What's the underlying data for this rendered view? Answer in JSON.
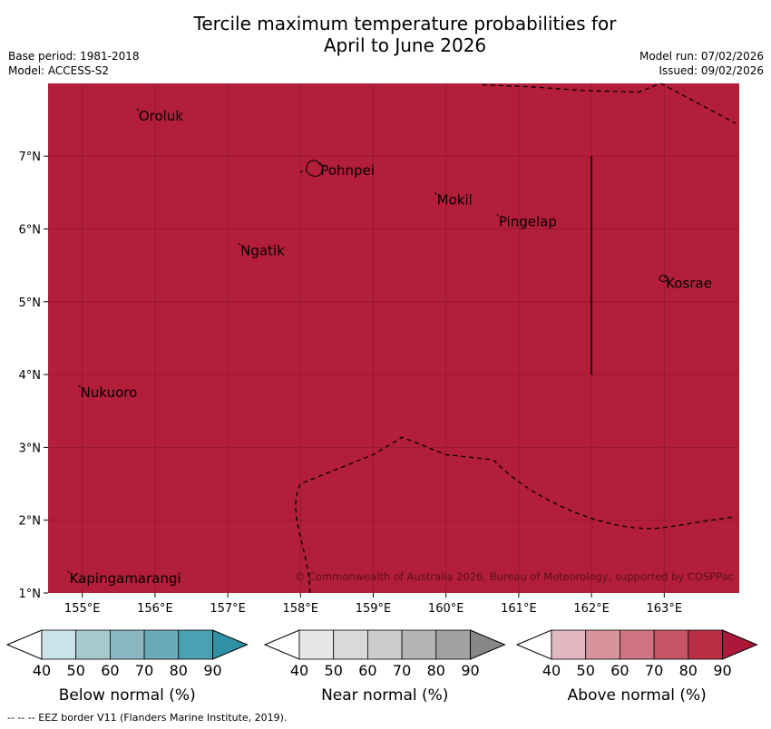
{
  "title_line1": "Tercile maximum temperature probabilities for",
  "title_line2": "April to June 2026",
  "base_period": "Base period: 1981-2018",
  "model": "Model: ACCESS-S2",
  "model_run": "Model run: 07/02/2026",
  "issued": "Issued: 09/02/2026",
  "map": {
    "fill_color": "#b31e3a",
    "lon_labels": [
      "155°E",
      "156°E",
      "157°E",
      "158°E",
      "159°E",
      "160°E",
      "161°E",
      "162°E",
      "163°E"
    ],
    "lat_labels": [
      "7°N",
      "6°N",
      "5°N",
      "4°N",
      "3°N",
      "2°N",
      "1°N"
    ],
    "places": [
      {
        "name": "Oroluk",
        "lon": 155.75,
        "lat": 7.6
      },
      {
        "name": "Pohnpei",
        "lon": 158.25,
        "lat": 6.85
      },
      {
        "name": "Mokil",
        "lon": 159.85,
        "lat": 6.45
      },
      {
        "name": "Pingelap",
        "lon": 160.7,
        "lat": 6.15
      },
      {
        "name": "Ngatik",
        "lon": 157.15,
        "lat": 5.75
      },
      {
        "name": "Kosrae",
        "lon": 163.0,
        "lat": 5.3
      },
      {
        "name": "Nukuoro",
        "lon": 154.95,
        "lat": 3.8
      },
      {
        "name": "Kapingamarangi",
        "lon": 154.8,
        "lat": 1.25
      }
    ],
    "copyright": "© Commonwealth of Australia 2026, Bureau of Meteorology, supported by COSPPac"
  },
  "colorbars": [
    {
      "label": "Below normal (%)",
      "colors": [
        "#cce3e9",
        "#a6c9cf",
        "#8ab7c0",
        "#69aab8",
        "#4aa1b2"
      ],
      "arrow_color": "#2f90a6"
    },
    {
      "label": "Near normal (%)",
      "colors": [
        "#e6e6e6",
        "#d9d9d9",
        "#cccccc",
        "#b3b3b3",
        "#a2a2a2"
      ],
      "arrow_color": "#888888"
    },
    {
      "label": "Above normal (%)",
      "colors": [
        "#e2b8c0",
        "#d8949c",
        "#cd7480",
        "#c45564",
        "#b82f45"
      ],
      "arrow_color": "#ae1838"
    }
  ],
  "colorbar_ticks": [
    "40",
    "50",
    "60",
    "70",
    "80",
    "90"
  ],
  "footnote": "--  --  -- EEZ border V11 (Flanders Marine Institute, 2019)."
}
